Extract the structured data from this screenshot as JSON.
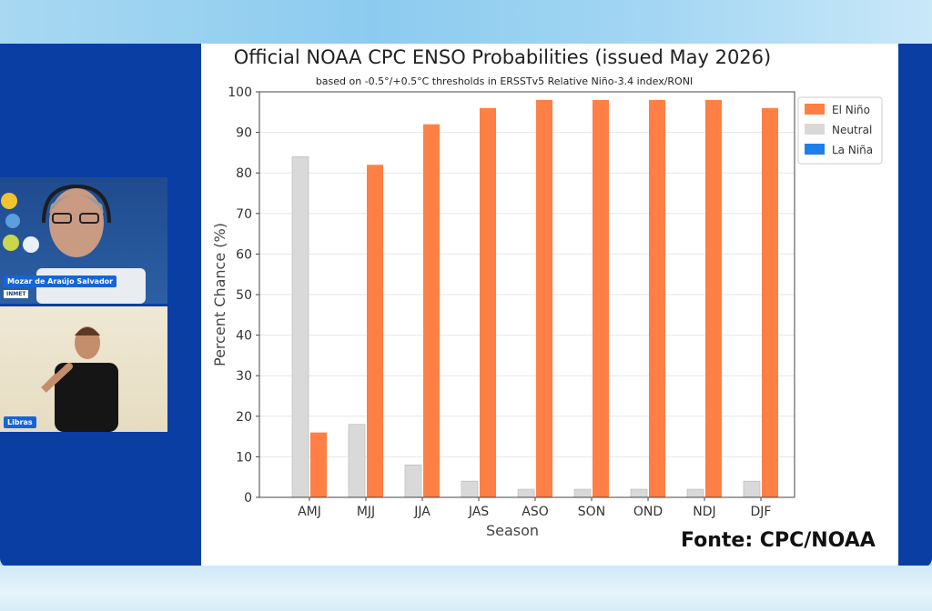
{
  "participants": {
    "speaker_name": "Mozar de Araújo Salvador",
    "speaker_org": "INMET",
    "interpreter_label": "Libras"
  },
  "source_label": "Fonte: CPC/NOAA",
  "colors": {
    "el_nino": "#ff7f45",
    "neutral": "#d9d9d9",
    "la_nina": "#1f7ee8",
    "stage": "#0a3ea3"
  },
  "chart_data": {
    "type": "bar",
    "title": "Official NOAA CPC ENSO Probabilities (issued May 2026)",
    "subtitle": "based on -0.5°/+0.5°C thresholds in ERSSTv5 Relative Niño-3.4 index/RONI",
    "xlabel": "Season",
    "ylabel": "Percent Chance (%)",
    "ylim": [
      0,
      100
    ],
    "yticks": [
      0,
      10,
      20,
      30,
      40,
      50,
      60,
      70,
      80,
      90,
      100
    ],
    "grid": true,
    "legend_position": "right",
    "categories": [
      "AMJ",
      "MJJ",
      "JJA",
      "JAS",
      "ASO",
      "SON",
      "OND",
      "NDJ",
      "DJF"
    ],
    "series": [
      {
        "name": "El Niño",
        "color": "#ff7f45",
        "values": [
          16,
          82,
          92,
          96,
          98,
          98,
          98,
          98,
          96
        ]
      },
      {
        "name": "Neutral",
        "color": "#d9d9d9",
        "values": [
          84,
          18,
          8,
          4,
          2,
          2,
          2,
          2,
          4
        ]
      },
      {
        "name": "La Niña",
        "color": "#1f7ee8",
        "values": [
          0,
          0,
          0,
          0,
          0,
          0,
          0,
          0,
          0
        ]
      }
    ]
  }
}
